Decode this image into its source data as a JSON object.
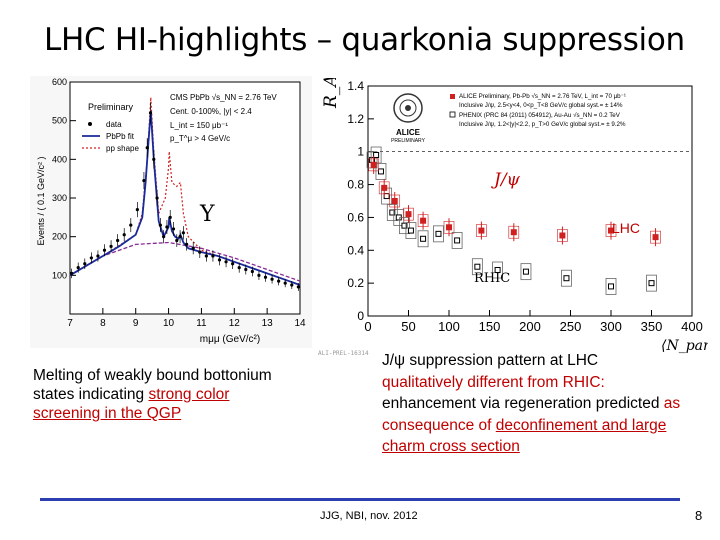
{
  "slide": {
    "title": "LHC HI-highlights – quarkonia suppression",
    "footer": "JJG, NBI, nov. 2012",
    "page_number": "8",
    "left_caption": {
      "line1": "Melting of weakly bound bottonium states indicating",
      "red_part": "strong color screening in the QGP"
    },
    "right_caption": {
      "line1": "J/ψ suppression pattern at LHC",
      "red1": "qualitatively different from RHIC:",
      "red2": "enhancement via regeneration predicted",
      "red3": "as consequence of",
      "red4": "deconfinement and large charm cross section"
    },
    "annotations": {
      "upsilon": "Υ",
      "jpsi": "J/ψ",
      "lhc": "LHC",
      "rhic": "RHIC",
      "alice_tag": "ALI-PREL-16314"
    }
  },
  "chart_data": [
    {
      "type": "histogram",
      "title": "",
      "xlabel": "mμμ (GeV/c²)",
      "ylabel": "Events / ( 0.1 GeV/c² )",
      "xlim": [
        7,
        14
      ],
      "ylim": [
        0,
        600
      ],
      "x_ticks": [
        "7",
        "8",
        "9",
        "10",
        "11",
        "12",
        "13",
        "14"
      ],
      "y_ticks": [
        "100",
        "200",
        "300",
        "400",
        "500",
        "600"
      ],
      "legend_header": "CMS PbPb √s_NN = 2.76 TeV",
      "legend_sub": [
        "Cent. 0-100%, |y| < 2.4",
        "L_int = 150 μb⁻¹",
        "p_T^μ > 4 GeV/c"
      ],
      "preliminary": "Preliminary",
      "legend": [
        "data",
        "PbPb fit",
        "pp shape"
      ],
      "data": {
        "x": [
          7.05,
          7.25,
          7.45,
          7.65,
          7.85,
          8.05,
          8.25,
          8.45,
          8.65,
          8.85,
          9.05,
          9.25,
          9.35,
          9.45,
          9.55,
          9.65,
          9.75,
          9.85,
          9.95,
          10.05,
          10.15,
          10.25,
          10.35,
          10.45,
          10.55,
          10.75,
          10.95,
          11.15,
          11.35,
          11.55,
          11.75,
          11.95,
          12.15,
          12.35,
          12.55,
          12.75,
          12.95,
          13.15,
          13.35,
          13.55,
          13.75,
          13.95
        ],
        "y": [
          105,
          120,
          130,
          145,
          150,
          165,
          175,
          190,
          205,
          230,
          270,
          345,
          430,
          520,
          400,
          300,
          230,
          200,
          225,
          250,
          220,
          190,
          200,
          210,
          180,
          170,
          160,
          150,
          150,
          140,
          135,
          130,
          120,
          115,
          110,
          100,
          95,
          90,
          85,
          80,
          75,
          70
        ]
      },
      "pbpb_fit": {
        "x": [
          7.0,
          7.5,
          8.0,
          8.5,
          9.0,
          9.2,
          9.3,
          9.4,
          9.46,
          9.55,
          9.7,
          9.85,
          10.0,
          10.02,
          10.1,
          10.2,
          10.3,
          10.36,
          10.45,
          10.6,
          11.0,
          11.5,
          12.0,
          12.5,
          13.0,
          13.5,
          14.0
        ],
        "y": [
          100,
          125,
          150,
          175,
          205,
          250,
          340,
          460,
          525,
          400,
          240,
          200,
          225,
          250,
          215,
          200,
          195,
          205,
          185,
          170,
          160,
          150,
          135,
          120,
          105,
          90,
          75
        ]
      },
      "pp_shape": {
        "x": [
          7.0,
          8.0,
          9.0,
          9.2,
          9.35,
          9.46,
          9.55,
          9.7,
          9.9,
          10.0,
          10.02,
          10.1,
          10.25,
          10.36,
          10.45,
          10.6,
          11.0,
          12.0,
          13.0,
          14.0
        ],
        "y": [
          100,
          150,
          205,
          260,
          400,
          560,
          420,
          260,
          300,
          380,
          420,
          340,
          330,
          340,
          260,
          200,
          165,
          135,
          105,
          75
        ]
      },
      "background": {
        "x": [
          7.0,
          8.0,
          9.0,
          10.0,
          11.0,
          12.0,
          13.0,
          14.0
        ],
        "y": [
          100,
          150,
          180,
          185,
          170,
          145,
          115,
          85
        ]
      }
    },
    {
      "type": "scatter",
      "title": "",
      "xlabel": "⟨N_part⟩",
      "ylabel": "R_AA",
      "xlim": [
        0,
        400
      ],
      "ylim": [
        0,
        1.4
      ],
      "x_ticks": [
        "0",
        "50",
        "100",
        "150",
        "200",
        "250",
        "300",
        "350",
        "400"
      ],
      "y_ticks": [
        "0",
        "0.2",
        "0.4",
        "0.6",
        "0.8",
        "1",
        "1.2",
        "1.4"
      ],
      "legend": [
        "ALICE Preliminary, Pb-Pb √s_NN = 2.76 TeV, L_int = 70 μb⁻¹",
        "Inclusive J/ψ, 2.5<y<4, 0<p_T<8 GeV/c   global syst.= ± 14%",
        "PHENIX (PRC 84 (2011) 054912), Au-Au √s_NN = 0.2 TeV",
        "Inclusive J/ψ, 1.2<|y|<2.2, p_T>0 GeV/c   global syst.= ± 9.2%"
      ],
      "logo": "ALICE",
      "logo_sub": "PRELIMINARY",
      "series": [
        {
          "name": "ALICE",
          "x": [
            7,
            20,
            33,
            50,
            68,
            100,
            140,
            180,
            240,
            300,
            355
          ],
          "y": [
            0.92,
            0.78,
            0.7,
            0.62,
            0.58,
            0.54,
            0.52,
            0.51,
            0.49,
            0.52,
            0.48
          ]
        },
        {
          "name": "PHENIX",
          "x": [
            5,
            10,
            16,
            23,
            30,
            38,
            45,
            53,
            68,
            87,
            110,
            135,
            160,
            195,
            245,
            300,
            350
          ],
          "y": [
            0.95,
            0.98,
            0.88,
            0.73,
            0.63,
            0.6,
            0.55,
            0.52,
            0.47,
            0.5,
            0.46,
            0.3,
            0.28,
            0.27,
            0.23,
            0.18,
            0.2
          ]
        }
      ]
    }
  ]
}
